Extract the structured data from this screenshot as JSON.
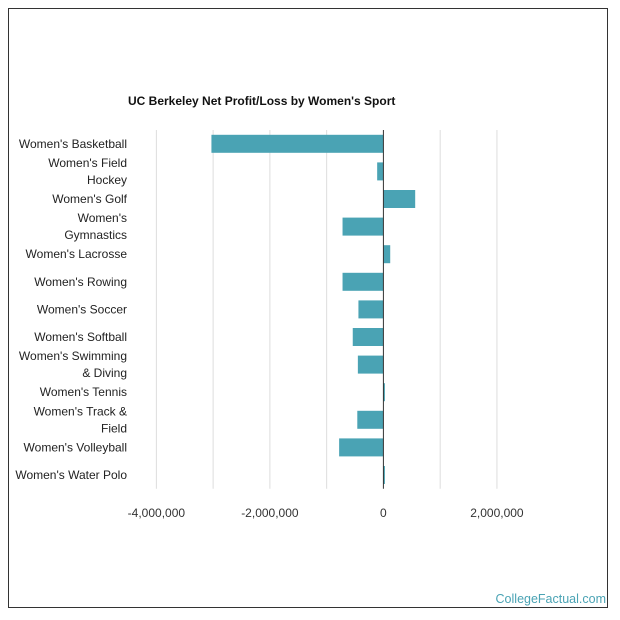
{
  "chart_data": {
    "type": "bar",
    "orientation": "horizontal",
    "title": "UC Berkeley Net Profit/Loss by Women's Sport",
    "categories": [
      [
        "Women's Basketball"
      ],
      [
        "Women's Field",
        "Hockey"
      ],
      [
        "Women's Golf"
      ],
      [
        "Women's",
        "Gymnastics"
      ],
      [
        "Women's Lacrosse"
      ],
      [
        "Women's Rowing"
      ],
      [
        "Women's Soccer"
      ],
      [
        "Women's Softball"
      ],
      [
        "Women's Swimming",
        "& Diving"
      ],
      [
        "Women's Tennis"
      ],
      [
        "Women's Track &",
        "Field"
      ],
      [
        "Women's Volleyball"
      ],
      [
        "Women's Water Polo"
      ]
    ],
    "values": [
      -3030000,
      -110000,
      560000,
      -720000,
      120000,
      -720000,
      -440000,
      -540000,
      -450000,
      15000,
      -460000,
      -780000,
      10000
    ],
    "xlim": [
      -4500000,
      2900000
    ],
    "xticks": [
      -4000000,
      -2000000,
      0,
      2000000
    ],
    "xtick_labels": [
      "-4,000,000",
      "-2,000,000",
      "0",
      "2,000,000"
    ],
    "grid": true,
    "bar_color": "#4aa3b4"
  },
  "watermark": "CollegeFactual.com"
}
